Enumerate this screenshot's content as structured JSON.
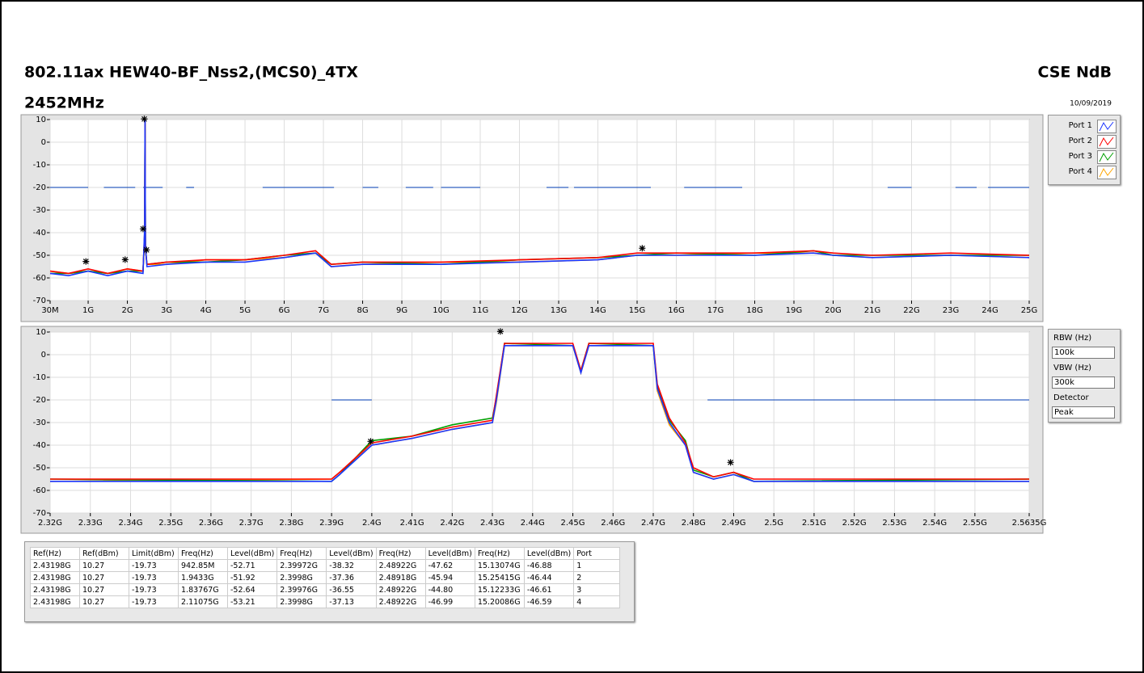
{
  "header": {
    "title": "802.11ax HEW40-BF_Nss2,(MCS0)_4TX",
    "band": "2452MHz",
    "lab": "CSE NdB",
    "date": "10/09/2019"
  },
  "chart_data": [
    {
      "type": "line",
      "grid": true,
      "ylim": [
        -70,
        10
      ],
      "yticks": [
        10,
        0,
        -10,
        -20,
        -30,
        -40,
        -50,
        -60,
        -70
      ],
      "xlim": [
        30000000,
        25000000000
      ],
      "xticks": [
        {
          "value": 30000000,
          "label": "30M"
        },
        {
          "value": 1000000000,
          "label": "1G"
        },
        {
          "value": 2000000000,
          "label": "2G"
        },
        {
          "value": 3000000000,
          "label": "3G"
        },
        {
          "value": 4000000000,
          "label": "4G"
        },
        {
          "value": 5000000000,
          "label": "5G"
        },
        {
          "value": 6000000000,
          "label": "6G"
        },
        {
          "value": 7000000000,
          "label": "7G"
        },
        {
          "value": 8000000000,
          "label": "8G"
        },
        {
          "value": 9000000000,
          "label": "9G"
        },
        {
          "value": 10000000000,
          "label": "10G"
        },
        {
          "value": 11000000000,
          "label": "11G"
        },
        {
          "value": 12000000000,
          "label": "12G"
        },
        {
          "value": 13000000000,
          "label": "13G"
        },
        {
          "value": 14000000000,
          "label": "14G"
        },
        {
          "value": 15000000000,
          "label": "15G"
        },
        {
          "value": 16000000000,
          "label": "16G"
        },
        {
          "value": 17000000000,
          "label": "17G"
        },
        {
          "value": 18000000000,
          "label": "18G"
        },
        {
          "value": 19000000000,
          "label": "19G"
        },
        {
          "value": 20000000000,
          "label": "20G"
        },
        {
          "value": 21000000000,
          "label": "21G"
        },
        {
          "value": 22000000000,
          "label": "22G"
        },
        {
          "value": 23000000000,
          "label": "23G"
        },
        {
          "value": 24000000000,
          "label": "24G"
        },
        {
          "value": 25000000000,
          "label": "25G"
        }
      ],
      "x": [
        30000000,
        500000000,
        1000000000,
        1500000000,
        2000000000,
        2400000000,
        2440000000,
        2450000000,
        2460000000,
        2500000000,
        3000000000,
        4000000000,
        5000000000,
        6000000000,
        6800000000,
        7200000000,
        8000000000,
        10000000000,
        12000000000,
        14000000000,
        15000000000,
        16000000000,
        18000000000,
        19500000000,
        20000000000,
        21000000000,
        23000000000,
        25000000000
      ],
      "series": [
        {
          "name": "Port 1",
          "color": "#1a35ff",
          "values": [
            -58,
            -59,
            -57,
            -59,
            -57,
            -58,
            -38,
            10,
            -46,
            -55,
            -54,
            -53,
            -53,
            -51,
            -49,
            -55,
            -54,
            -54,
            -53,
            -52,
            -50,
            -50,
            -50,
            -49,
            -50,
            -51,
            -50,
            -51
          ]
        },
        {
          "name": "Port 2",
          "color": "#ff0000",
          "values": [
            -57,
            -58,
            -56,
            -58,
            -56,
            -57,
            -40,
            9,
            -47,
            -54,
            -53,
            -52,
            -52,
            -50,
            -48,
            -54,
            -53,
            -53,
            -52,
            -51,
            -49,
            -49,
            -49,
            -48,
            -49,
            -50,
            -49,
            -50
          ]
        },
        {
          "name": "Port 3",
          "color": "#00a000",
          "values": [
            -58,
            -58,
            -57,
            -58,
            -57,
            -57,
            -41,
            9,
            -47,
            -54,
            -53,
            -53,
            -52,
            -50,
            -49,
            -54,
            -53,
            -54,
            -52,
            -51,
            -50,
            -49,
            -50,
            -48,
            -50,
            -50,
            -50,
            -50
          ]
        },
        {
          "name": "Port 4",
          "color": "#ffa500",
          "values": [
            -57,
            -58,
            -57,
            -58,
            -56,
            -57,
            -42,
            8,
            -48,
            -54,
            -54,
            -52,
            -52,
            -51,
            -49,
            -55,
            -54,
            -53,
            -53,
            -52,
            -50,
            -50,
            -49,
            -49,
            -50,
            -51,
            -50,
            -51
          ]
        }
      ],
      "limit": {
        "value": -20,
        "color": "#3060c0",
        "segments": [
          [
            30000000,
            1000000000
          ],
          [
            1400000000,
            2200000000
          ],
          [
            2400000000,
            2900000000
          ],
          [
            3500000000,
            3700000000
          ],
          [
            5450000000,
            7270000000
          ],
          [
            8000000000,
            8400000000
          ],
          [
            9100000000,
            9800000000
          ],
          [
            10000000000,
            11000000000
          ],
          [
            12690000000,
            13250000000
          ],
          [
            13390000000,
            15350000000
          ],
          [
            16200000000,
            17680000000
          ],
          [
            21390000000,
            22000000000
          ],
          [
            23120000000,
            23660000000
          ],
          [
            23950000000,
            25000000000
          ]
        ]
      },
      "markers": [
        {
          "x": 2431980000,
          "y": 10.27
        },
        {
          "x": 942850000,
          "y": -52.71
        },
        {
          "x": 1943300000,
          "y": -51.92
        },
        {
          "x": 2399720000,
          "y": -38.32
        },
        {
          "x": 2489220000,
          "y": -47.62
        },
        {
          "x": 15130740000,
          "y": -46.88
        }
      ]
    },
    {
      "type": "line",
      "grid": true,
      "ylim": [
        -70,
        10
      ],
      "yticks": [
        10,
        0,
        -10,
        -20,
        -30,
        -40,
        -50,
        -60,
        -70
      ],
      "xlim": [
        2320000000,
        2563500000
      ],
      "xticks": [
        {
          "value": 2320000000,
          "label": "2.32G"
        },
        {
          "value": 2330000000,
          "label": "2.33G"
        },
        {
          "value": 2340000000,
          "label": "2.34G"
        },
        {
          "value": 2350000000,
          "label": "2.35G"
        },
        {
          "value": 2360000000,
          "label": "2.36G"
        },
        {
          "value": 2370000000,
          "label": "2.37G"
        },
        {
          "value": 2380000000,
          "label": "2.38G"
        },
        {
          "value": 2390000000,
          "label": "2.39G"
        },
        {
          "value": 2400000000,
          "label": "2.4G"
        },
        {
          "value": 2410000000,
          "label": "2.41G"
        },
        {
          "value": 2420000000,
          "label": "2.42G"
        },
        {
          "value": 2430000000,
          "label": "2.43G"
        },
        {
          "value": 2440000000,
          "label": "2.44G"
        },
        {
          "value": 2450000000,
          "label": "2.45G"
        },
        {
          "value": 2460000000,
          "label": "2.46G"
        },
        {
          "value": 2470000000,
          "label": "2.47G"
        },
        {
          "value": 2480000000,
          "label": "2.48G"
        },
        {
          "value": 2490000000,
          "label": "2.49G"
        },
        {
          "value": 2500000000,
          "label": "2.5G"
        },
        {
          "value": 2510000000,
          "label": "2.51G"
        },
        {
          "value": 2520000000,
          "label": "2.52G"
        },
        {
          "value": 2530000000,
          "label": "2.53G"
        },
        {
          "value": 2540000000,
          "label": "2.54G"
        },
        {
          "value": 2550000000,
          "label": "2.55G"
        },
        {
          "value": 2563500000,
          "label": "2.5635G"
        }
      ],
      "x": [
        2320000000,
        2390000000,
        2392000000,
        2400000000,
        2410000000,
        2420000000,
        2430000000,
        2431000000,
        2433000000,
        2450000000,
        2452000000,
        2454000000,
        2470000000,
        2471000000,
        2474000000,
        2478000000,
        2480000000,
        2485000000,
        2490000000,
        2495000000,
        2563500000
      ],
      "series": [
        {
          "color": "#1a35ff",
          "values": [
            -56,
            -56,
            -53,
            -40,
            -37,
            -33,
            -30,
            -20,
            4,
            4,
            -8,
            4,
            4,
            -15,
            -30,
            -40,
            -52,
            -55,
            -53,
            -56,
            -56
          ]
        },
        {
          "color": "#ff0000",
          "values": [
            -55,
            -55,
            -52,
            -39,
            -36,
            -32,
            -29,
            -18,
            5,
            5,
            -7,
            5,
            5,
            -13,
            -28,
            -39,
            -50,
            -54,
            -52,
            -55,
            -55
          ]
        },
        {
          "color": "#00a000",
          "values": [
            -55,
            -56,
            -53,
            -38,
            -36,
            -31,
            -28,
            -19,
            5,
            4,
            -7,
            5,
            4,
            -14,
            -29,
            -38,
            -51,
            -54,
            -52,
            -56,
            -55
          ]
        },
        {
          "color": "#ffa500",
          "values": [
            -56,
            -55,
            -52,
            -40,
            -37,
            -33,
            -30,
            -21,
            4,
            4,
            -8,
            4,
            4,
            -16,
            -31,
            -40,
            -52,
            -55,
            -53,
            -56,
            -56
          ]
        }
      ],
      "limit": {
        "value": -20,
        "color": "#3060c0",
        "segments": [
          [
            2390000000,
            2400000000
          ],
          [
            2483500000,
            2563500000
          ]
        ]
      },
      "markers": [
        {
          "x": 2431980000,
          "y": 10.27
        },
        {
          "x": 2399720000,
          "y": -38.32
        },
        {
          "x": 2489220000,
          "y": -47.62
        }
      ]
    }
  ],
  "settings": {
    "rbw_label": "RBW (Hz)",
    "rbw": "100k",
    "vbw_label": "VBW (Hz)",
    "vbw": "300k",
    "detector_label": "Detector",
    "detector": "Peak"
  },
  "table": {
    "header": [
      "Ref(Hz)",
      "Ref(dBm)",
      "Limit(dBm)",
      "Freq(Hz)",
      "Level(dBm)",
      "Freq(Hz)",
      "Level(dBm)",
      "Freq(Hz)",
      "Level(dBm)",
      "Freq(Hz)",
      "Level(dBm)",
      "Port"
    ],
    "rows": [
      [
        "2.43198G",
        "10.27",
        "-19.73",
        "942.85M",
        "-52.71",
        "2.39972G",
        "-38.32",
        "2.48922G",
        "-47.62",
        "15.13074G",
        "-46.88",
        "1"
      ],
      [
        "2.43198G",
        "10.27",
        "-19.73",
        "1.9433G",
        "-51.92",
        "2.3998G",
        "-37.36",
        "2.48918G",
        "-45.94",
        "15.25415G",
        "-46.44",
        "2"
      ],
      [
        "2.43198G",
        "10.27",
        "-19.73",
        "1.83767G",
        "-52.64",
        "2.39976G",
        "-36.55",
        "2.48922G",
        "-44.80",
        "15.12233G",
        "-46.61",
        "3"
      ],
      [
        "2.43198G",
        "10.27",
        "-19.73",
        "2.11075G",
        "-53.21",
        "2.3998G",
        "-37.13",
        "2.48922G",
        "-46.99",
        "15.20086G",
        "-46.59",
        "4"
      ]
    ]
  }
}
